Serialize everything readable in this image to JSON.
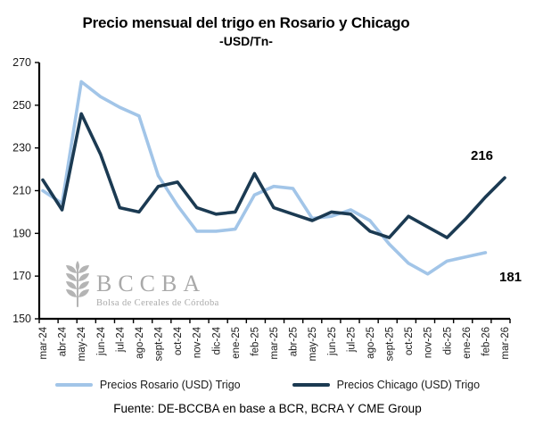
{
  "title": "Precio mensual del trigo en Rosario y Chicago",
  "subtitle": "-USD/Tn-",
  "watermark": {
    "name": "BCCBA",
    "tagline": "Bolsa de Cereales de Córdoba"
  },
  "end_labels": {
    "chicago": "216",
    "rosario": "181"
  },
  "legend": [
    {
      "label": "Precios Rosario (USD) Trigo",
      "color": "#a2c5e8"
    },
    {
      "label": "Precios Chicago (USD) Trigo",
      "color": "#1b3a52"
    }
  ],
  "source": "Fuente: DE-BCCBA en base a BCR, BCRA Y CME Group",
  "chart_data": {
    "type": "line",
    "title": "Precio mensual del trigo en Rosario y Chicago",
    "subtitle": "-USD/Tn-",
    "ylabel": "USD/Tn",
    "xlabel": "",
    "ylim": [
      150,
      270
    ],
    "yticks": [
      150,
      170,
      190,
      210,
      230,
      250,
      270
    ],
    "grid": false,
    "legend_position": "bottom",
    "categories": [
      "mar-24",
      "abr-24",
      "may-24",
      "jun-24",
      "jul-24",
      "ago-24",
      "sept-24",
      "oct-24",
      "nov-24",
      "dic-24",
      "ene-25",
      "feb-25",
      "mar-25",
      "abr-25",
      "may-25",
      "jun-25",
      "jul-25",
      "ago-25",
      "sept-25",
      "oct-25",
      "nov-25",
      "dic-25",
      "ene-26",
      "feb-26",
      "mar-26"
    ],
    "series": [
      {
        "name": "Precios Rosario (USD) Trigo",
        "color": "#a2c5e8",
        "values": [
          210,
          204,
          261,
          254,
          249,
          245,
          217,
          203,
          191,
          191,
          192,
          208,
          212,
          211,
          197,
          198,
          201,
          196,
          185,
          176,
          171,
          177,
          179,
          181,
          null
        ]
      },
      {
        "name": "Precios Chicago (USD) Trigo",
        "color": "#1b3a52",
        "values": [
          215,
          201,
          246,
          227,
          202,
          200,
          212,
          214,
          202,
          199,
          200,
          218,
          202,
          199,
          196,
          200,
          199,
          191,
          188,
          198,
          193,
          188,
          197,
          207,
          216
        ]
      }
    ]
  }
}
